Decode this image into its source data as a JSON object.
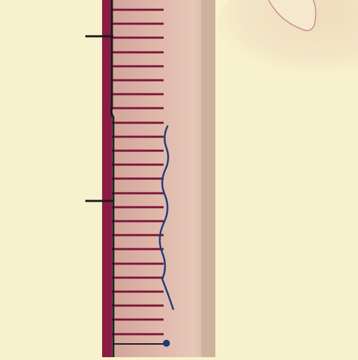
{
  "colors": {
    "background": "#f8f2cc",
    "blob": "#f3e4c4",
    "blob_edge": "#c88a92",
    "strip_body": "#d9b0a4",
    "strip_light": "#e4c4b5",
    "strip_right_edge": "#c9ad9a",
    "strip_left_band": "#8a1c44",
    "rungs": "#7a1538",
    "spine": "#1a1a1a",
    "wavy_line": "#1e3a78"
  },
  "icons": {
    "marker_dot": "circle-dot"
  }
}
